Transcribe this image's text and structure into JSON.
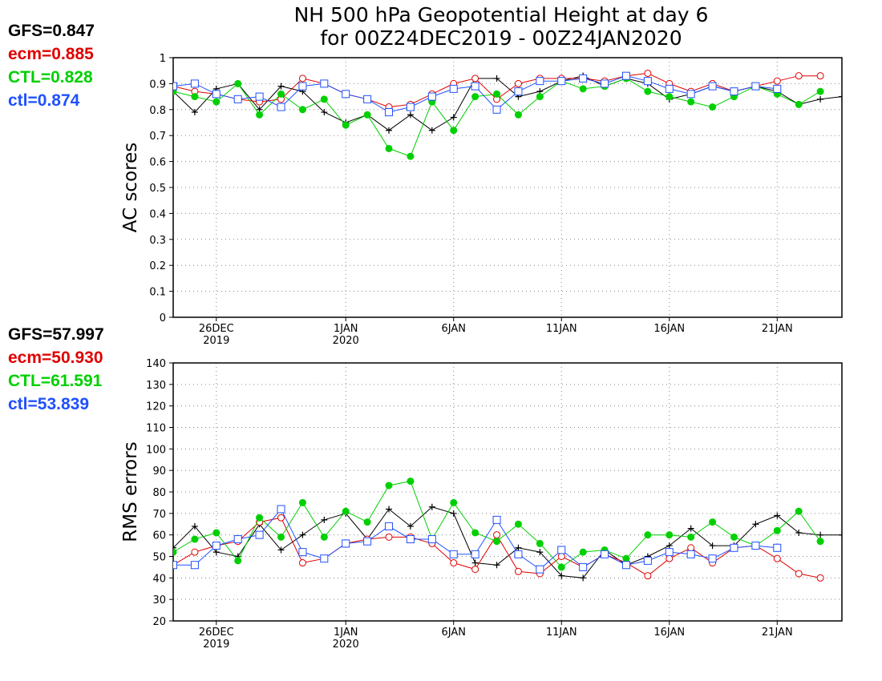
{
  "title_line1": "NH 500 hPa Geopotential Height at day 6",
  "title_line2": "for 00Z24DEC2019 - 00Z24JAN2020",
  "colors": {
    "GFS": "#000000",
    "ecm": "#e00000",
    "CTL": "#00d000",
    "ctl": "#2050ff"
  },
  "ac_stats": [
    {
      "label": "GFS=0.847",
      "color": "#000000"
    },
    {
      "label": "ecm=0.885",
      "color": "#e00000"
    },
    {
      "label": "CTL=0.828",
      "color": "#00d000"
    },
    {
      "label": "ctl=0.874",
      "color": "#2050ff"
    }
  ],
  "rms_stats": [
    {
      "label": "GFS=57.997",
      "color": "#000000"
    },
    {
      "label": "ecm=50.930",
      "color": "#e00000"
    },
    {
      "label": "CTL=61.591",
      "color": "#00d000"
    },
    {
      "label": "ctl=53.839",
      "color": "#2050ff"
    }
  ],
  "chart_data": [
    {
      "type": "line",
      "ylabel": "AC scores",
      "ylim": [
        0,
        1
      ],
      "yticks": [
        "0",
        "0.1",
        "0.2",
        "0.3",
        "0.4",
        "0.5",
        "0.6",
        "0.7",
        "0.8",
        "0.9",
        "1"
      ],
      "xlim": [
        24,
        55
      ],
      "xticks": [
        {
          "x": 26,
          "line1": "26DEC",
          "line2": "2019"
        },
        {
          "x": 32,
          "line1": "1JAN",
          "line2": "2020"
        },
        {
          "x": 37,
          "line1": "6JAN",
          "line2": ""
        },
        {
          "x": 42,
          "line1": "11JAN",
          "line2": ""
        },
        {
          "x": 47,
          "line1": "16JAN",
          "line2": ""
        },
        {
          "x": 52,
          "line1": "21JAN",
          "line2": ""
        }
      ],
      "grid": true,
      "series": [
        {
          "name": "GFS",
          "marker": "plus",
          "color": "#000000",
          "x": [
            24,
            25,
            26,
            27,
            28,
            29,
            30,
            31,
            32,
            33,
            34,
            35,
            36,
            37,
            38,
            39,
            40,
            41,
            42,
            43,
            44,
            45,
            46,
            47,
            48,
            49,
            50,
            51,
            52,
            53,
            54,
            55
          ],
          "values": [
            0.87,
            0.79,
            0.88,
            0.9,
            0.8,
            0.89,
            0.87,
            0.79,
            0.75,
            0.78,
            0.72,
            0.78,
            0.72,
            0.77,
            0.92,
            0.92,
            0.85,
            0.87,
            0.91,
            0.93,
            0.89,
            0.92,
            0.9,
            0.84,
            0.86,
            0.89,
            0.87,
            0.89,
            0.87,
            0.82,
            0.84,
            0.85
          ]
        },
        {
          "name": "ecm",
          "marker": "circle",
          "color": "#e00000",
          "x": [
            24,
            25,
            26,
            27,
            28,
            29,
            30,
            31,
            32,
            33,
            34,
            35,
            36,
            37,
            38,
            39,
            40,
            41,
            42,
            43,
            44,
            45,
            46,
            47,
            48,
            49,
            50,
            51,
            52,
            53,
            54
          ],
          "values": [
            0.89,
            0.87,
            0.86,
            0.84,
            0.83,
            0.84,
            0.92,
            0.9,
            0.86,
            0.84,
            0.81,
            0.82,
            0.86,
            0.9,
            0.92,
            0.84,
            0.9,
            0.92,
            0.92,
            0.92,
            0.91,
            0.93,
            0.94,
            0.9,
            0.87,
            0.9,
            0.87,
            0.89,
            0.91,
            0.93,
            0.93
          ]
        },
        {
          "name": "CTL",
          "marker": "dot",
          "color": "#00d000",
          "x": [
            24,
            25,
            26,
            27,
            28,
            29,
            30,
            31,
            32,
            33,
            34,
            35,
            36,
            37,
            38,
            39,
            40,
            41,
            42,
            43,
            44,
            45,
            46,
            47,
            48,
            49,
            50,
            51,
            52,
            53,
            54
          ],
          "values": [
            0.87,
            0.85,
            0.83,
            0.9,
            0.78,
            0.86,
            0.8,
            0.84,
            0.74,
            0.78,
            0.65,
            0.62,
            0.83,
            0.72,
            0.85,
            0.86,
            0.78,
            0.85,
            0.91,
            0.88,
            0.89,
            0.92,
            0.87,
            0.85,
            0.83,
            0.81,
            0.85,
            0.89,
            0.86,
            0.82,
            0.87
          ]
        },
        {
          "name": "ctl",
          "marker": "square",
          "color": "#2050ff",
          "x": [
            24,
            25,
            26,
            27,
            28,
            29,
            30,
            31,
            32,
            33,
            34,
            35,
            36,
            37,
            38,
            39,
            40,
            41,
            42,
            43,
            44,
            45,
            46,
            47,
            48,
            49,
            50,
            51,
            52
          ],
          "values": [
            0.89,
            0.9,
            0.86,
            0.84,
            0.85,
            0.81,
            0.89,
            0.9,
            0.86,
            0.84,
            0.79,
            0.81,
            0.85,
            0.88,
            0.89,
            0.8,
            0.87,
            0.91,
            0.91,
            0.92,
            0.9,
            0.93,
            0.91,
            0.88,
            0.86,
            0.89,
            0.87,
            0.89,
            0.88
          ]
        }
      ]
    },
    {
      "type": "line",
      "ylabel": "RMS errors",
      "ylim": [
        20,
        140
      ],
      "yticks": [
        "20",
        "30",
        "40",
        "50",
        "60",
        "70",
        "80",
        "90",
        "100",
        "110",
        "120",
        "130",
        "140"
      ],
      "xlim": [
        24,
        55
      ],
      "xticks": [
        {
          "x": 26,
          "line1": "26DEC",
          "line2": "2019"
        },
        {
          "x": 32,
          "line1": "1JAN",
          "line2": "2020"
        },
        {
          "x": 37,
          "line1": "6JAN",
          "line2": ""
        },
        {
          "x": 42,
          "line1": "11JAN",
          "line2": ""
        },
        {
          "x": 47,
          "line1": "16JAN",
          "line2": ""
        },
        {
          "x": 52,
          "line1": "21JAN",
          "line2": ""
        }
      ],
      "grid": true,
      "series": [
        {
          "name": "GFS",
          "marker": "plus",
          "color": "#000000",
          "x": [
            24,
            25,
            26,
            27,
            28,
            29,
            30,
            31,
            32,
            33,
            34,
            35,
            36,
            37,
            38,
            39,
            40,
            41,
            42,
            43,
            44,
            45,
            46,
            47,
            48,
            49,
            50,
            51,
            52,
            53,
            54,
            55
          ],
          "values": [
            54,
            64,
            52,
            50,
            65,
            53,
            60,
            67,
            70,
            58,
            72,
            64,
            73,
            70,
            47,
            46,
            54,
            52,
            41,
            40,
            53,
            46,
            50,
            55,
            63,
            55,
            55,
            65,
            69,
            61,
            60,
            60
          ]
        },
        {
          "name": "ecm",
          "marker": "circle",
          "color": "#e00000",
          "x": [
            24,
            25,
            26,
            27,
            28,
            29,
            30,
            31,
            32,
            33,
            34,
            35,
            36,
            37,
            38,
            39,
            40,
            41,
            42,
            43,
            44,
            45,
            46,
            47,
            48,
            49,
            50,
            51,
            52,
            53,
            54
          ],
          "values": [
            46,
            52,
            55,
            57,
            66,
            68,
            47,
            49,
            56,
            58,
            59,
            59,
            56,
            47,
            44,
            60,
            43,
            42,
            50,
            45,
            51,
            47,
            41,
            49,
            54,
            47,
            54,
            55,
            49,
            42,
            40
          ]
        },
        {
          "name": "CTL",
          "marker": "dot",
          "color": "#00d000",
          "x": [
            24,
            25,
            26,
            27,
            28,
            29,
            30,
            31,
            32,
            33,
            34,
            35,
            36,
            37,
            38,
            39,
            40,
            41,
            42,
            43,
            44,
            45,
            46,
            47,
            48,
            49,
            50,
            51,
            52,
            53,
            54
          ],
          "values": [
            52,
            58,
            61,
            48,
            68,
            59,
            75,
            59,
            71,
            66,
            83,
            85,
            58,
            75,
            61,
            57,
            65,
            56,
            45,
            52,
            53,
            49,
            60,
            60,
            59,
            66,
            59,
            55,
            62,
            71,
            57
          ]
        },
        {
          "name": "ctl",
          "marker": "square",
          "color": "#2050ff",
          "x": [
            24,
            25,
            26,
            27,
            28,
            29,
            30,
            31,
            32,
            33,
            34,
            35,
            36,
            37,
            38,
            39,
            40,
            41,
            42,
            43,
            44,
            45,
            46,
            47,
            48,
            49,
            50,
            51,
            52
          ],
          "values": [
            46,
            46,
            55,
            58,
            60,
            72,
            52,
            49,
            56,
            57,
            64,
            58,
            58,
            51,
            51,
            67,
            51,
            44,
            53,
            45,
            51,
            46,
            48,
            52,
            51,
            49,
            54,
            55,
            54
          ]
        }
      ]
    }
  ]
}
